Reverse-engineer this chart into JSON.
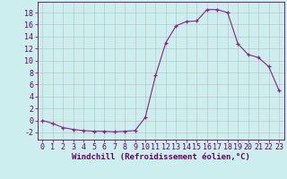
{
  "x": [
    0,
    1,
    2,
    3,
    4,
    5,
    6,
    7,
    8,
    9,
    10,
    11,
    12,
    13,
    14,
    15,
    16,
    17,
    18,
    19,
    20,
    21,
    22,
    23
  ],
  "y": [
    0.0,
    -0.5,
    -1.2,
    -1.5,
    -1.7,
    -1.8,
    -1.8,
    -1.9,
    -1.8,
    -1.7,
    0.5,
    7.5,
    13.0,
    15.8,
    16.5,
    16.6,
    18.5,
    18.5,
    18.0,
    12.8,
    11.0,
    10.5,
    9.0,
    5.0
  ],
  "line_color": "#882288",
  "marker": "+",
  "bg_color": "#cceeee",
  "grid_color": "#bbbbbb",
  "xlabel": "Windchill (Refroidissement éolien,°C)",
  "yticks": [
    -2,
    0,
    2,
    4,
    6,
    8,
    10,
    12,
    14,
    16,
    18
  ],
  "xlim": [
    -0.5,
    23.5
  ],
  "ylim": [
    -3.2,
    19.8
  ],
  "label_color": "#660066",
  "label_fontsize": 6.5,
  "tick_fontsize": 6.0
}
